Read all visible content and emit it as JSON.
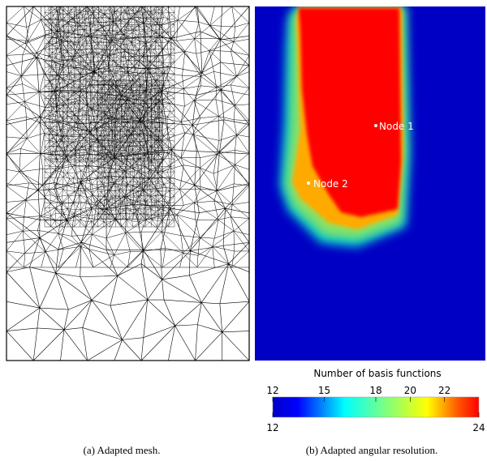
{
  "panel_a": {
    "caption": "(a) Adapted mesh."
  },
  "panel_b": {
    "caption": "(b) Adapted angular resolution.",
    "annotations": [
      "Node 1",
      "Node 2"
    ],
    "colorbar": {
      "title": "Number of basis functions",
      "ticks": [
        12,
        15,
        18,
        20,
        22
      ],
      "range": [
        12,
        24
      ]
    }
  }
}
